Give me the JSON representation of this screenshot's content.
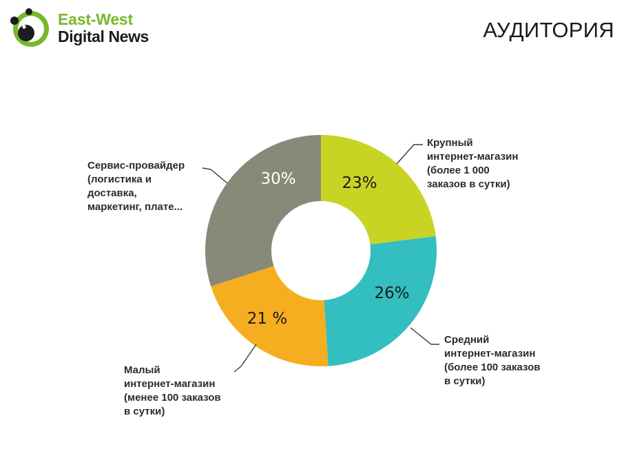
{
  "header": {
    "logo_line1": "East-West",
    "logo_line2": "Digital News",
    "title": "АУДИТОРИЯ"
  },
  "colors": {
    "logo_green": "#77b82a",
    "logo_dark": "#1c1c1c",
    "leader_line": "#3a3a3a"
  },
  "chart_data": {
    "type": "pie",
    "donut": true,
    "start_angle_deg": 0,
    "direction": "clockwise",
    "slices": [
      {
        "value": 23,
        "value_label": "23%",
        "color": "#c9d324",
        "label_color": "#1a1a1a",
        "category_lines": [
          "Крупный",
          "интернет-магазин",
          "(более 1 000",
          "заказов в сутки)"
        ]
      },
      {
        "value": 26,
        "value_label": "26%",
        "color": "#33bec0",
        "label_color": "#1a1a1a",
        "category_lines": [
          "Средний",
          "интернет-магазин",
          "(более 100 заказов",
          "в сутки)"
        ]
      },
      {
        "value": 21,
        "value_label": "21 %",
        "color": "#f5ae20",
        "label_color": "#1a1a1a",
        "category_lines": [
          "Малый",
          "интернет-магазин",
          "(менее 100 заказов",
          "в сутки)"
        ]
      },
      {
        "value": 30,
        "value_label": "30%",
        "color": "#898979",
        "label_color": "#ffffff",
        "category_lines": [
          "Сервис-провайдер",
          "(логистика и",
          "доставка,",
          "маркетинг, плате..."
        ]
      }
    ]
  }
}
